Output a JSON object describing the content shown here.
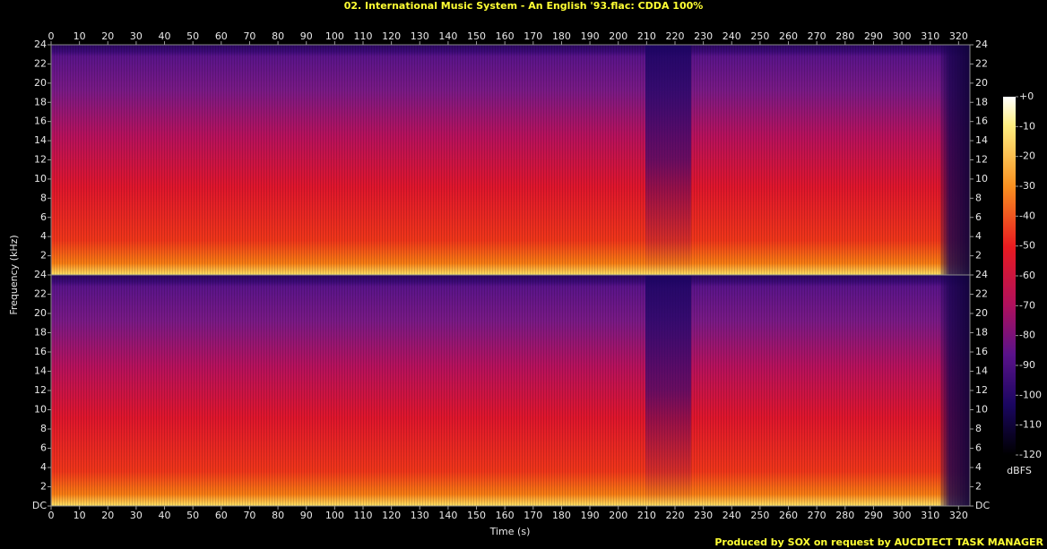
{
  "chart_data": {
    "type": "spectrogram",
    "title": "02. International Music System - An English '93.flac: CDDA 100%",
    "x_label": "Time (s)",
    "y_label": "Frequency (kHz)",
    "xlim": [
      0,
      324
    ],
    "xticks": [
      0,
      10,
      20,
      30,
      40,
      50,
      60,
      70,
      80,
      90,
      100,
      110,
      120,
      130,
      140,
      150,
      160,
      170,
      180,
      190,
      200,
      210,
      220,
      230,
      240,
      250,
      260,
      270,
      280,
      290,
      300,
      310,
      320
    ],
    "panels": [
      {
        "ylim": [
          0,
          24
        ],
        "yticks": [
          2,
          4,
          6,
          8,
          10,
          12,
          14,
          16,
          18,
          20,
          22,
          24
        ]
      },
      {
        "ylim": [
          0,
          24
        ],
        "yticks": [
          {
            "value": 0,
            "label": "DC"
          },
          2,
          4,
          6,
          8,
          10,
          12,
          14,
          16,
          18,
          20,
          22,
          24
        ]
      }
    ],
    "colorbar": {
      "label": "dBFS",
      "lim": [
        -120,
        0
      ],
      "ticks": [
        {
          "value": 0,
          "label": "+0"
        },
        -10,
        -20,
        -30,
        -40,
        -50,
        -60,
        -70,
        -80,
        -90,
        -100,
        -110,
        -120
      ]
    },
    "credit": "Produced by SOX on request by AUCDTECT TASK MANAGER"
  }
}
